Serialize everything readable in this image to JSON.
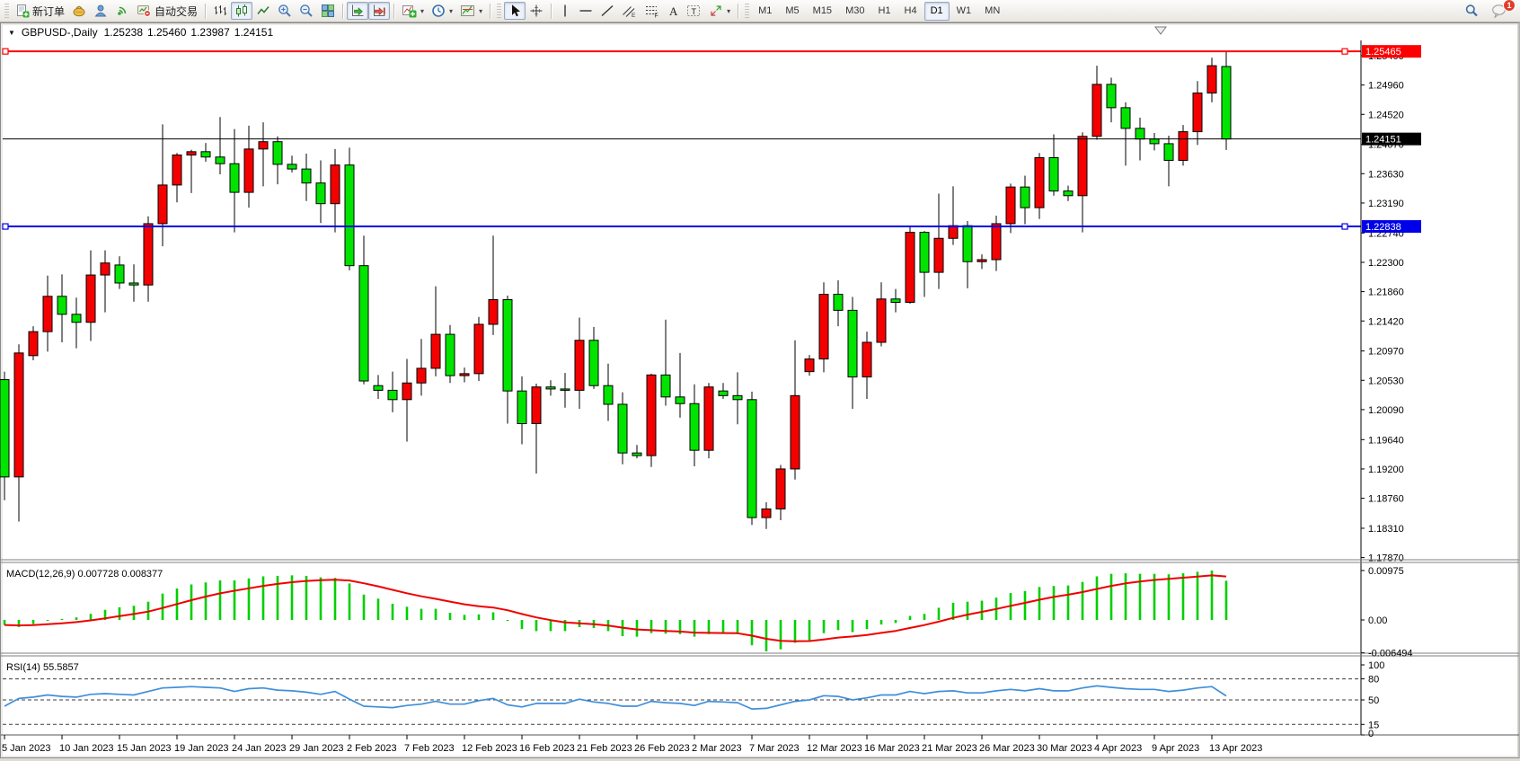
{
  "toolbar": {
    "new_order_label": "新订单",
    "autotrading_label": "自动交易",
    "timeframes": [
      "M1",
      "M5",
      "M15",
      "M30",
      "H1",
      "H4",
      "D1",
      "W1",
      "MN"
    ],
    "active_timeframe": "D1",
    "notification_count": "1"
  },
  "chart": {
    "title": {
      "dropdown_icon": "▼",
      "symbol": "GBPUSD-,Daily",
      "open": "1.25238",
      "high": "1.25460",
      "low": "1.23987",
      "close": "1.24151"
    }
  },
  "chart_data": {
    "type": "candlestick",
    "symbol": "GBPUSD",
    "period": "Daily",
    "title": "GBPUSD-,Daily  1.25238 1.25460 1.23987 1.24151",
    "colors": {
      "up_candle": "#F40000",
      "down_candle": "#00E400",
      "wick": "#000000",
      "macd_hist": "#00CF00",
      "macd_signal": "#F00000",
      "rsi_line": "#3F8FDC",
      "hline_red": "#FF0000",
      "hline_blue": "#0000E8",
      "price_line": "#000000"
    },
    "price_axis_ticks": [
      "1.25400",
      "1.24960",
      "1.24520",
      "1.24070",
      "1.23630",
      "1.23190",
      "1.22740",
      "1.22300",
      "1.21860",
      "1.21420",
      "1.20970",
      "1.20530",
      "1.20090",
      "1.19640",
      "1.19200",
      "1.18760",
      "1.18310",
      "1.17870"
    ],
    "hlines": [
      {
        "price": 1.25465,
        "label": "1.25465",
        "color": "#FF0000"
      },
      {
        "price": 1.22838,
        "label": "1.22838",
        "color": "#0000E8"
      }
    ],
    "current_price": {
      "price": 1.24151,
      "label": "1.24151",
      "color": "#000000"
    },
    "x_labels": [
      [
        0,
        "5 Jan 2023"
      ],
      [
        4,
        "10 Jan 2023"
      ],
      [
        8,
        "15 Jan 2023"
      ],
      [
        12,
        "19 Jan 2023"
      ],
      [
        16,
        "24 Jan 2023"
      ],
      [
        20,
        "29 Jan 2023"
      ],
      [
        24,
        "2 Feb 2023"
      ],
      [
        28,
        "7 Feb 2023"
      ],
      [
        32,
        "12 Feb 2023"
      ],
      [
        36,
        "16 Feb 2023"
      ],
      [
        40,
        "21 Feb 2023"
      ],
      [
        44,
        "26 Feb 2023"
      ],
      [
        48,
        "2 Mar 2023"
      ],
      [
        52,
        "7 Mar 2023"
      ],
      [
        56,
        "12 Mar 2023"
      ],
      [
        60,
        "16 Mar 2023"
      ],
      [
        64,
        "21 Mar 2023"
      ],
      [
        68,
        "26 Mar 2023"
      ],
      [
        72,
        "30 Mar 2023"
      ],
      [
        76,
        "4 Apr 2023"
      ],
      [
        80,
        "9 Apr 2023"
      ],
      [
        84,
        "13 Apr 2023"
      ]
    ],
    "candles": [
      [
        "5 Jan 2023",
        1.2054,
        1.2066,
        1.1873,
        1.1908
      ],
      [
        "6 Jan 2023",
        1.1908,
        1.2107,
        1.1841,
        1.2094
      ],
      [
        "8 Jan 2023",
        1.209,
        1.2134,
        1.2083,
        1.2126
      ],
      [
        "9 Jan 2023",
        1.2126,
        1.221,
        1.2096,
        1.2179
      ],
      [
        "10 Jan 2023",
        1.2179,
        1.2212,
        1.211,
        1.2152
      ],
      [
        "11 Jan 2023",
        1.2152,
        1.2177,
        1.2101,
        1.214
      ],
      [
        "12 Jan 2023",
        1.214,
        1.2248,
        1.2112,
        1.2211
      ],
      [
        "13 Jan 2023",
        1.2211,
        1.2248,
        1.2155,
        1.2229
      ],
      [
        "15 Jan 2023",
        1.2226,
        1.2239,
        1.219,
        1.2199
      ],
      [
        "16 Jan 2023",
        1.2199,
        1.2227,
        1.2171,
        1.2196
      ],
      [
        "17 Jan 2023",
        1.2196,
        1.2299,
        1.2171,
        1.2288
      ],
      [
        "18 Jan 2023",
        1.2288,
        1.2437,
        1.2254,
        1.2346
      ],
      [
        "19 Jan 2023",
        1.2346,
        1.2394,
        1.232,
        1.2391
      ],
      [
        "20 Jan 2023",
        1.2391,
        1.2399,
        1.2334,
        1.2396
      ],
      [
        "22 Jan 2023",
        1.2396,
        1.2409,
        1.2381,
        1.2388
      ],
      [
        "23 Jan 2023",
        1.2388,
        1.2448,
        1.2362,
        1.2378
      ],
      [
        "24 Jan 2023",
        1.2378,
        1.243,
        1.2275,
        1.2335
      ],
      [
        "25 Jan 2023",
        1.2335,
        1.2435,
        1.2312,
        1.24
      ],
      [
        "26 Jan 2023",
        1.24,
        1.244,
        1.2344,
        1.2411
      ],
      [
        "27 Jan 2023",
        1.2411,
        1.2419,
        1.2347,
        1.2377
      ],
      [
        "29 Jan 2023",
        1.2377,
        1.239,
        1.2365,
        1.237
      ],
      [
        "30 Jan 2023",
        1.237,
        1.2393,
        1.2322,
        1.2349
      ],
      [
        "31 Jan 2023",
        1.2349,
        1.2383,
        1.2289,
        1.2318
      ],
      [
        "1 Feb 2023",
        1.2318,
        1.24,
        1.2275,
        1.2376
      ],
      [
        "2 Feb 2023",
        1.2376,
        1.2402,
        1.2218,
        1.2225
      ],
      [
        "3 Feb 2023",
        1.2225,
        1.227,
        1.2047,
        1.2052
      ],
      [
        "5 Feb 2023",
        1.2045,
        1.2061,
        1.2025,
        1.2038
      ],
      [
        "6 Feb 2023",
        1.2038,
        1.2066,
        1.2005,
        1.2024
      ],
      [
        "7 Feb 2023",
        1.2024,
        1.2085,
        1.1961,
        1.2049
      ],
      [
        "8 Feb 2023",
        1.2049,
        1.2115,
        1.203,
        1.2071
      ],
      [
        "9 Feb 2023",
        1.2071,
        1.2194,
        1.2059,
        1.2122
      ],
      [
        "10 Feb 2023",
        1.2122,
        1.2136,
        1.2049,
        1.206
      ],
      [
        "12 Feb 2023",
        1.206,
        1.2072,
        1.205,
        1.2063
      ],
      [
        "13 Feb 2023",
        1.2063,
        1.2148,
        1.2052,
        1.2137
      ],
      [
        "14 Feb 2023",
        1.2137,
        1.227,
        1.2121,
        1.2174
      ],
      [
        "15 Feb 2023",
        1.2174,
        1.218,
        1.1988,
        1.2037
      ],
      [
        "16 Feb 2023",
        1.2037,
        1.2059,
        1.1957,
        1.1988
      ],
      [
        "17 Feb 2023",
        1.1988,
        1.2048,
        1.1913,
        1.2043
      ],
      [
        "19 Feb 2023",
        1.2043,
        1.2053,
        1.203,
        1.204
      ],
      [
        "20 Feb 2023",
        1.204,
        1.2064,
        1.2012,
        1.2038
      ],
      [
        "21 Feb 2023",
        1.2038,
        1.2147,
        1.201,
        1.2113
      ],
      [
        "22 Feb 2023",
        1.2113,
        1.2133,
        1.204,
        1.2045
      ],
      [
        "23 Feb 2023",
        1.2045,
        1.2078,
        1.1992,
        1.2017
      ],
      [
        "24 Feb 2023",
        1.2017,
        1.2035,
        1.1927,
        1.1944
      ],
      [
        "26 Feb 2023",
        1.1944,
        1.1956,
        1.1936,
        1.194
      ],
      [
        "27 Feb 2023",
        1.194,
        1.2063,
        1.1923,
        1.2061
      ],
      [
        "28 Feb 2023",
        1.2061,
        1.2144,
        1.2015,
        1.2028
      ],
      [
        "1 Mar 2023",
        1.2028,
        1.2094,
        1.1997,
        1.2018
      ],
      [
        "2 Mar 2023",
        1.2018,
        1.2047,
        1.1924,
        1.1948
      ],
      [
        "3 Mar 2023",
        1.1948,
        1.2049,
        1.1936,
        1.2043
      ],
      [
        "5 Mar 2023",
        1.2037,
        1.2049,
        1.2025,
        1.203
      ],
      [
        "6 Mar 2023",
        1.203,
        1.2065,
        1.1987,
        1.2024
      ],
      [
        "7 Mar 2023",
        1.2024,
        1.2036,
        1.1836,
        1.1847
      ],
      [
        "8 Mar 2023",
        1.1847,
        1.187,
        1.183,
        1.186
      ],
      [
        "9 Mar 2023",
        1.186,
        1.1926,
        1.1843,
        1.192
      ],
      [
        "10 Mar 2023",
        1.192,
        1.2113,
        1.1904,
        1.203
      ],
      [
        "12 Mar 2023",
        1.2066,
        1.2091,
        1.206,
        1.2085
      ],
      [
        "13 Mar 2023",
        1.2085,
        1.22,
        1.2065,
        1.2182
      ],
      [
        "14 Mar 2023",
        1.2182,
        1.2203,
        1.2134,
        1.2158
      ],
      [
        "15 Mar 2023",
        1.2158,
        1.2178,
        1.201,
        1.2058
      ],
      [
        "16 Mar 2023",
        1.2058,
        1.2126,
        1.2025,
        1.211
      ],
      [
        "17 Mar 2023",
        1.211,
        1.22,
        1.2104,
        1.2175
      ],
      [
        "19 Mar 2023",
        1.2175,
        1.219,
        1.2155,
        1.217
      ],
      [
        "20 Mar 2023",
        1.217,
        1.2284,
        1.2168,
        1.2275
      ],
      [
        "21 Mar 2023",
        1.2275,
        1.2277,
        1.2178,
        1.2215
      ],
      [
        "22 Mar 2023",
        1.2215,
        1.2333,
        1.219,
        1.2266
      ],
      [
        "23 Mar 2023",
        1.2266,
        1.2344,
        1.2256,
        1.2285
      ],
      [
        "24 Mar 2023",
        1.2285,
        1.2292,
        1.2191,
        1.2231
      ],
      [
        "26 Mar 2023",
        1.2231,
        1.2242,
        1.222,
        1.2234
      ],
      [
        "27 Mar 2023",
        1.2234,
        1.23,
        1.2217,
        1.2288
      ],
      [
        "28 Mar 2023",
        1.2288,
        1.2348,
        1.2274,
        1.2343
      ],
      [
        "29 Mar 2023",
        1.2343,
        1.236,
        1.2287,
        1.2312
      ],
      [
        "30 Mar 2023",
        1.2312,
        1.2394,
        1.2295,
        1.2387
      ],
      [
        "31 Mar 2023",
        1.2387,
        1.2422,
        1.233,
        1.2337
      ],
      [
        "2 Apr 2023",
        1.2337,
        1.2345,
        1.2322,
        1.233
      ],
      [
        "3 Apr 2023",
        1.233,
        1.2425,
        1.2275,
        1.2419
      ],
      [
        "4 Apr 2023",
        1.2419,
        1.2525,
        1.2414,
        1.2497
      ],
      [
        "5 Apr 2023",
        1.2497,
        1.2507,
        1.244,
        1.2462
      ],
      [
        "6 Apr 2023",
        1.2462,
        1.247,
        1.2375,
        1.2431
      ],
      [
        "7 Apr 2023",
        1.2431,
        1.2447,
        1.2383,
        1.2415
      ],
      [
        "9 Apr 2023",
        1.2415,
        1.2424,
        1.2398,
        1.2408
      ],
      [
        "10 Apr 2023",
        1.2408,
        1.242,
        1.2344,
        1.2383
      ],
      [
        "11 Apr 2023",
        1.2383,
        1.2436,
        1.2375,
        1.2426
      ],
      [
        "12 Apr 2023",
        1.2426,
        1.2502,
        1.2406,
        1.2484
      ],
      [
        "13 Apr 2023",
        1.2484,
        1.2537,
        1.247,
        1.2525
      ],
      [
        "14 Apr 2023",
        1.25238,
        1.2546,
        1.23987,
        1.24151
      ]
    ],
    "macd": {
      "label": "MACD(12,26,9)",
      "current_macd": "0.007728",
      "current_signal": "0.008377",
      "axis_labels": [
        "0.00975",
        "0.00",
        "-0.006494"
      ],
      "signal_ema_period": 9,
      "hist": [
        -0.001,
        -0.0014,
        -0.0008,
        -0.0002,
        0.0002,
        0.0005,
        0.0012,
        0.002,
        0.0025,
        0.0028,
        0.0036,
        0.0052,
        0.0062,
        0.007,
        0.0074,
        0.0078,
        0.0078,
        0.0082,
        0.0086,
        0.0087,
        0.0088,
        0.0087,
        0.0084,
        0.0083,
        0.0072,
        0.005,
        0.0042,
        0.0032,
        0.0026,
        0.0022,
        0.0022,
        0.0014,
        0.001,
        0.0011,
        0.0015,
        -0.0002,
        -0.0018,
        -0.0022,
        -0.0022,
        -0.0022,
        -0.0014,
        -0.0016,
        -0.0022,
        -0.0032,
        -0.0033,
        -0.0026,
        -0.0027,
        -0.0028,
        -0.0033,
        -0.0028,
        -0.0027,
        -0.0028,
        -0.005,
        -0.0062,
        -0.0058,
        -0.0045,
        -0.004,
        -0.0026,
        -0.002,
        -0.0024,
        -0.0018,
        -0.0009,
        -0.0006,
        0.0008,
        0.0012,
        0.0024,
        0.0034,
        0.0036,
        0.0038,
        0.0044,
        0.0053,
        0.0057,
        0.0065,
        0.0067,
        0.0068,
        0.0075,
        0.0086,
        0.0091,
        0.0092,
        0.0091,
        0.0091,
        0.009,
        0.0092,
        0.0095,
        0.00975,
        0.007728
      ]
    },
    "rsi": {
      "label": "RSI(14)",
      "current": "55.5857",
      "levels": [
        80,
        50,
        15
      ],
      "axis_labels": [
        "100",
        "80",
        "50",
        "15",
        "0"
      ],
      "values": [
        41,
        52,
        54,
        57,
        55,
        54,
        58,
        59,
        58,
        57,
        62,
        67,
        68,
        69,
        68,
        67,
        62,
        66,
        67,
        64,
        63,
        61,
        58,
        62,
        51,
        41,
        40,
        39,
        42,
        44,
        48,
        44,
        44,
        49,
        52,
        43,
        40,
        45,
        45,
        45,
        51,
        47,
        45,
        41,
        41,
        48,
        46,
        45,
        42,
        48,
        47,
        46,
        37,
        38,
        43,
        48,
        50,
        56,
        55,
        50,
        53,
        57,
        57,
        62,
        59,
        62,
        63,
        60,
        60,
        63,
        65,
        63,
        66,
        63,
        63,
        67,
        70,
        68,
        66,
        65,
        65,
        62,
        64,
        67,
        69,
        55.59
      ]
    }
  }
}
